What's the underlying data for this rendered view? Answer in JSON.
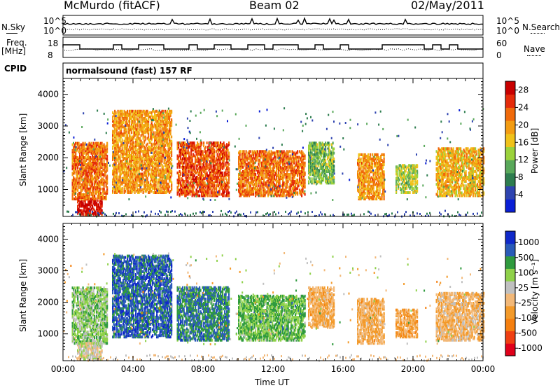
{
  "header": {
    "station": "McMurdo (fitACF)",
    "beam": "Beam 02",
    "date": "02/May/2011"
  },
  "strips": {
    "nsky_label": "N.Sky",
    "nsearch_label": "N.Search",
    "nsky_ticks": [
      "10^5",
      "10^0"
    ],
    "nsearch_ticks": [
      "10^5",
      "10^0"
    ],
    "freq_label": "Freq.",
    "freq_unit": "[MHz]",
    "freq_ticks": [
      "18",
      "8"
    ],
    "nave_label": "Nave",
    "nave_ticks": [
      "60",
      "0"
    ],
    "cpid_label": "CPID",
    "cpid_value": "normalsound (fast) 157 RF"
  },
  "colors": {
    "power": [
      "#0a1fd6",
      "#2f44b0",
      "#2e7d4f",
      "#59a85a",
      "#9bd23c",
      "#f0c21a",
      "#f39c12",
      "#f06a0a",
      "#e52b0a",
      "#c80000"
    ],
    "velocity": [
      "#e0001a",
      "#ef3f12",
      "#f57f0f",
      "#f39a2a",
      "#f2b878",
      "#c0c0c0",
      "#8fd14a",
      "#2f9a3e",
      "#2a5bb8",
      "#1029c9"
    ]
  },
  "chart_data": [
    {
      "type": "heatmap",
      "title": "",
      "xlabel": "Time UT",
      "ylabel": "Slant Range [km]",
      "xlim": [
        "00:00",
        "24:00"
      ],
      "ylim": [
        150,
        4500
      ],
      "x_ticks": [
        "00:00",
        "04:00",
        "08:00",
        "12:00",
        "16:00",
        "20:00",
        "00:00"
      ],
      "y_ticks": [
        "1000",
        "2000",
        "3000",
        "4000"
      ],
      "colorbar": {
        "label": "Power [dB]",
        "ticks": [
          "4",
          "8",
          "12",
          "16",
          "20",
          "24",
          "28"
        ],
        "range": [
          0,
          30
        ]
      },
      "features": [
        {
          "t_start": 0.8,
          "t_end": 2.2,
          "range_low": 200,
          "range_high": 700,
          "value": 28
        },
        {
          "t_start": 0.5,
          "t_end": 2.5,
          "range_low": 700,
          "range_high": 2500,
          "value": 22
        },
        {
          "t_start": 2.8,
          "t_end": 6.2,
          "range_low": 900,
          "range_high": 3500,
          "value": 20
        },
        {
          "t_start": 6.5,
          "t_end": 9.5,
          "range_low": 800,
          "range_high": 2500,
          "value": 24
        },
        {
          "t_start": 10.0,
          "t_end": 13.8,
          "range_low": 800,
          "range_high": 2200,
          "value": 22
        },
        {
          "t_start": 14.0,
          "t_end": 15.5,
          "range_low": 1200,
          "range_high": 2500,
          "value": 12
        },
        {
          "t_start": 16.8,
          "t_end": 18.3,
          "range_low": 700,
          "range_high": 2100,
          "value": 20
        },
        {
          "t_start": 19.0,
          "t_end": 20.2,
          "range_low": 900,
          "range_high": 1800,
          "value": 14
        },
        {
          "t_start": 21.3,
          "t_end": 24.0,
          "range_low": 800,
          "range_high": 2300,
          "value": 18
        }
      ]
    },
    {
      "type": "heatmap",
      "title": "",
      "xlabel": "Time UT",
      "ylabel": "Slant Range [km]",
      "xlim": [
        "00:00",
        "24:00"
      ],
      "ylim": [
        150,
        4500
      ],
      "x_ticks": [
        "00:00",
        "04:00",
        "08:00",
        "12:00",
        "16:00",
        "20:00",
        "00:00"
      ],
      "y_ticks": [
        "1000",
        "2000",
        "3000",
        "4000"
      ],
      "colorbar": {
        "label": "Velocity [m s⁻¹]",
        "ticks": [
          "1000",
          "500",
          "100",
          "25",
          "-25",
          "-100",
          "-500",
          "-1000"
        ],
        "range": [
          -1000,
          1000
        ]
      },
      "features": [
        {
          "t_start": 0.5,
          "t_end": 2.5,
          "range_low": 700,
          "range_high": 2500,
          "value": 300
        },
        {
          "t_start": 0.8,
          "t_end": 2.2,
          "range_low": 200,
          "range_high": 700,
          "value": 80
        },
        {
          "t_start": 2.8,
          "t_end": 6.2,
          "range_low": 900,
          "range_high": 3500,
          "value": 700
        },
        {
          "t_start": 6.5,
          "t_end": 9.5,
          "range_low": 800,
          "range_high": 2500,
          "value": 600
        },
        {
          "t_start": 10.0,
          "t_end": 13.8,
          "range_low": 800,
          "range_high": 2200,
          "value": 400
        },
        {
          "t_start": 14.0,
          "t_end": 15.5,
          "range_low": 1200,
          "range_high": 2500,
          "value": -200
        },
        {
          "t_start": 16.8,
          "t_end": 18.3,
          "range_low": 700,
          "range_high": 2100,
          "value": -200
        },
        {
          "t_start": 19.0,
          "t_end": 20.2,
          "range_low": 900,
          "range_high": 1800,
          "value": -250
        },
        {
          "t_start": 21.3,
          "t_end": 24.0,
          "range_low": 800,
          "range_high": 2300,
          "value": -150
        }
      ]
    }
  ]
}
